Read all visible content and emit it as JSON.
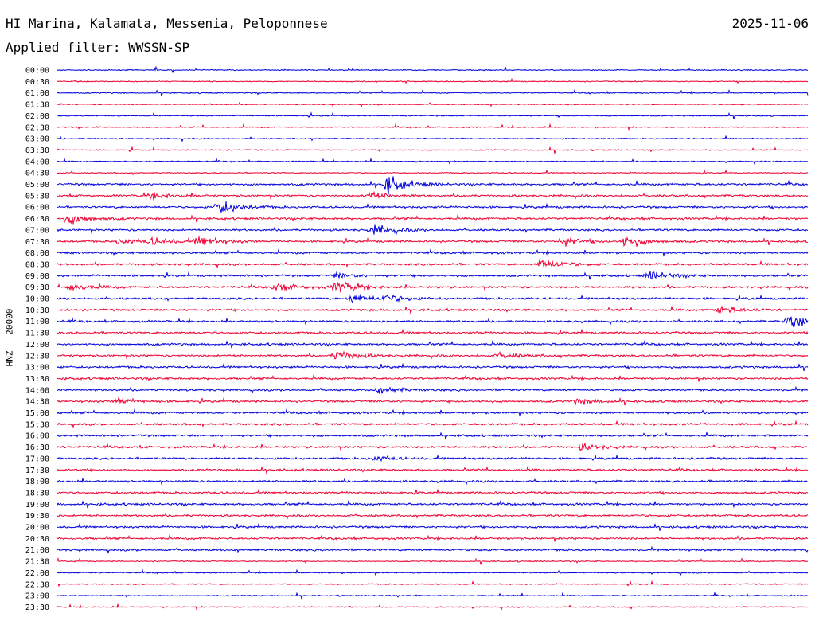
{
  "header": {
    "station": "HI Marina, Kalamata, Messenia, Peloponnese",
    "date": "2025-11-06",
    "filter": "Applied filter: WWSSN-SP"
  },
  "colors": {
    "odd_trace": "#0000dd",
    "even_trace": "#ee0033"
  },
  "chart_data": {
    "type": "line",
    "subtype": "helicorder",
    "ylabel": "HNZ - 20000",
    "row_labels": [
      "00:00",
      "00:30",
      "01:00",
      "01:30",
      "02:00",
      "02:30",
      "03:00",
      "03:30",
      "04:00",
      "04:30",
      "05:00",
      "05:30",
      "06:00",
      "06:30",
      "07:00",
      "07:30",
      "08:00",
      "08:30",
      "09:00",
      "09:30",
      "10:00",
      "10:30",
      "11:00",
      "11:30",
      "12:00",
      "12:30",
      "13:00",
      "13:30",
      "14:00",
      "14:30",
      "15:00",
      "15:30",
      "16:00",
      "16:30",
      "17:00",
      "17:30",
      "18:00",
      "18:30",
      "19:00",
      "19:30",
      "20:00",
      "20:30",
      "21:00",
      "21:30",
      "22:00",
      "22:30",
      "23:00",
      "23:30"
    ],
    "row_minutes": 30,
    "noise_level": [
      1,
      1,
      1,
      1,
      1,
      1,
      1,
      1,
      1,
      1,
      2,
      2,
      2,
      2,
      2,
      2,
      2,
      2,
      2,
      2,
      2,
      2,
      2,
      2,
      2,
      2,
      2,
      2,
      2,
      2,
      2,
      2,
      2,
      2,
      2,
      2,
      2,
      2,
      2,
      2,
      2,
      2,
      2,
      1,
      1,
      1,
      1,
      1
    ],
    "events": [
      {
        "row": 10,
        "minute": 13.2,
        "amplitude": 15
      },
      {
        "row": 11,
        "minute": 3.8,
        "amplitude": 5
      },
      {
        "row": 11,
        "minute": 12.5,
        "amplitude": 7
      },
      {
        "row": 12,
        "minute": 6.5,
        "amplitude": 13
      },
      {
        "row": 13,
        "minute": 0.5,
        "amplitude": 10
      },
      {
        "row": 14,
        "minute": 12.7,
        "amplitude": 10
      },
      {
        "row": 15,
        "minute": 2.5,
        "amplitude": 5
      },
      {
        "row": 15,
        "minute": 3.8,
        "amplitude": 6
      },
      {
        "row": 15,
        "minute": 5.7,
        "amplitude": 9
      },
      {
        "row": 15,
        "minute": 20.2,
        "amplitude": 8
      },
      {
        "row": 15,
        "minute": 22.7,
        "amplitude": 10
      },
      {
        "row": 17,
        "minute": 19.4,
        "amplitude": 10
      },
      {
        "row": 18,
        "minute": 11.2,
        "amplitude": 5
      },
      {
        "row": 18,
        "minute": 23.7,
        "amplitude": 8
      },
      {
        "row": 19,
        "minute": 0.5,
        "amplitude": 7
      },
      {
        "row": 19,
        "minute": 8.8,
        "amplitude": 7
      },
      {
        "row": 19,
        "minute": 11.2,
        "amplitude": 11
      },
      {
        "row": 20,
        "minute": 11.8,
        "amplitude": 8
      },
      {
        "row": 20,
        "minute": 13.2,
        "amplitude": 6
      },
      {
        "row": 21,
        "minute": 26.5,
        "amplitude": 6
      },
      {
        "row": 22,
        "minute": 29.3,
        "amplitude": 14
      },
      {
        "row": 25,
        "minute": 11.2,
        "amplitude": 9
      },
      {
        "row": 25,
        "minute": 17.7,
        "amplitude": 5
      },
      {
        "row": 28,
        "minute": 12.9,
        "amplitude": 6
      },
      {
        "row": 29,
        "minute": 2.5,
        "amplitude": 5
      },
      {
        "row": 29,
        "minute": 20.8,
        "amplitude": 5
      },
      {
        "row": 33,
        "minute": 21.0,
        "amplitude": 6
      },
      {
        "row": 34,
        "minute": 12.7,
        "amplitude": 4
      }
    ]
  }
}
